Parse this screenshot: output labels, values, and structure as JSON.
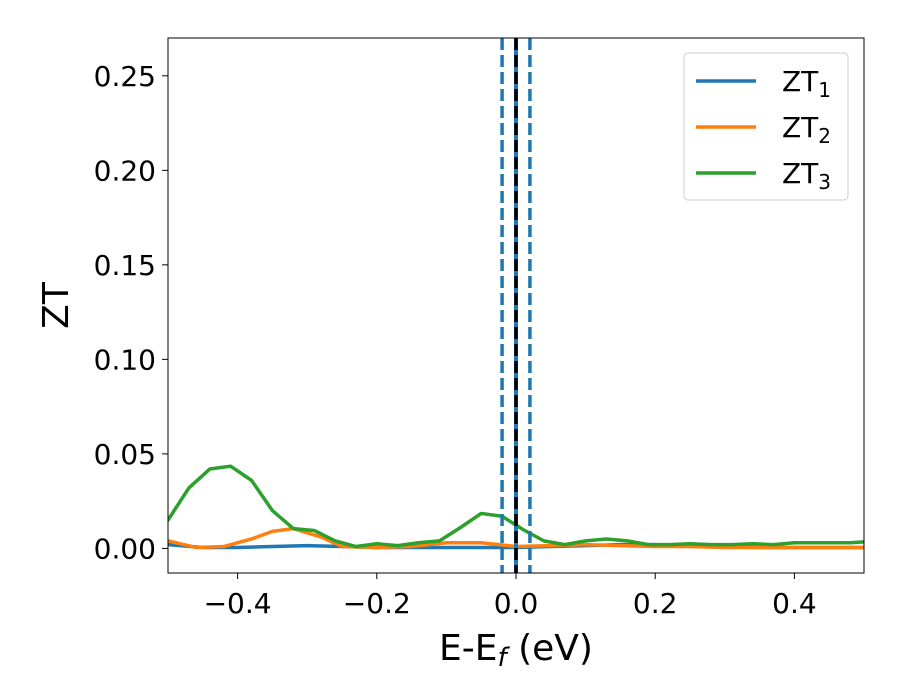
{
  "chart_data": {
    "type": "line",
    "xlabel": "E-E",
    "xlabel_sub": "f",
    "xlabel_unit": " (eV)",
    "ylabel": "ZT",
    "xlim": [
      -0.5,
      0.5
    ],
    "ylim": [
      -0.013,
      0.27
    ],
    "xticks": [
      -0.4,
      -0.2,
      0.0,
      0.2,
      0.4
    ],
    "xtick_labels": [
      "−0.4",
      "−0.2",
      "0.0",
      "0.2",
      "0.4"
    ],
    "yticks": [
      0.0,
      0.05,
      0.1,
      0.15,
      0.2,
      0.25
    ],
    "ytick_labels": [
      "0.00",
      "0.05",
      "0.10",
      "0.15",
      "0.20",
      "0.25"
    ],
    "grid": false,
    "legend_position": "top-right",
    "series": [
      {
        "name": "ZT",
        "name_sub": "1",
        "color": "#1f77b4",
        "x": [
          -0.5,
          -0.45,
          -0.4,
          -0.35,
          -0.3,
          -0.25,
          -0.2,
          -0.15,
          -0.1,
          -0.05,
          0.0,
          0.05,
          0.1,
          0.15,
          0.2,
          0.25,
          0.3,
          0.35,
          0.4,
          0.45,
          0.5
        ],
        "y": [
          0.002,
          0.0005,
          0.0005,
          0.001,
          0.0015,
          0.001,
          0.0005,
          0.0005,
          0.0005,
          0.0005,
          0.0005,
          0.001,
          0.0015,
          0.002,
          0.002,
          0.0015,
          0.001,
          0.0005,
          0.0005,
          0.0005,
          0.0005
        ]
      },
      {
        "name": "ZT",
        "name_sub": "2",
        "color": "#ff7f0e",
        "x": [
          -0.5,
          -0.46,
          -0.42,
          -0.38,
          -0.35,
          -0.32,
          -0.28,
          -0.25,
          -0.2,
          -0.15,
          -0.1,
          -0.05,
          0.0,
          0.05,
          0.1,
          0.15,
          0.2,
          0.25,
          0.3,
          0.35,
          0.4,
          0.45,
          0.5
        ],
        "y": [
          0.004,
          0.0005,
          0.001,
          0.005,
          0.009,
          0.0105,
          0.006,
          0.001,
          0.0005,
          0.001,
          0.003,
          0.003,
          0.001,
          0.0015,
          0.002,
          0.0015,
          0.001,
          0.001,
          0.0005,
          0.0005,
          0.0005,
          0.0005,
          0.0005
        ]
      },
      {
        "name": "ZT",
        "name_sub": "3",
        "color": "#2ca02c",
        "x": [
          -0.5,
          -0.47,
          -0.44,
          -0.41,
          -0.38,
          -0.35,
          -0.32,
          -0.29,
          -0.26,
          -0.23,
          -0.2,
          -0.17,
          -0.14,
          -0.11,
          -0.08,
          -0.05,
          -0.02,
          0.01,
          0.04,
          0.07,
          0.1,
          0.13,
          0.16,
          0.19,
          0.22,
          0.25,
          0.28,
          0.31,
          0.34,
          0.37,
          0.4,
          0.44,
          0.48,
          0.5
        ],
        "y": [
          0.015,
          0.032,
          0.042,
          0.0435,
          0.036,
          0.02,
          0.0105,
          0.0095,
          0.004,
          0.001,
          0.0025,
          0.0015,
          0.003,
          0.004,
          0.011,
          0.0185,
          0.017,
          0.01,
          0.004,
          0.002,
          0.004,
          0.005,
          0.004,
          0.002,
          0.002,
          0.0025,
          0.002,
          0.002,
          0.0025,
          0.002,
          0.003,
          0.003,
          0.003,
          0.0035
        ]
      }
    ],
    "vlines": [
      {
        "x": -0.02,
        "color": "#1f77b4",
        "style": "dashed"
      },
      {
        "x": 0.0,
        "color": "#1f77b4",
        "style": "solid"
      },
      {
        "x": 0.0,
        "color": "#000000",
        "style": "dashed"
      },
      {
        "x": 0.02,
        "color": "#1f77b4",
        "style": "dashed"
      }
    ]
  }
}
